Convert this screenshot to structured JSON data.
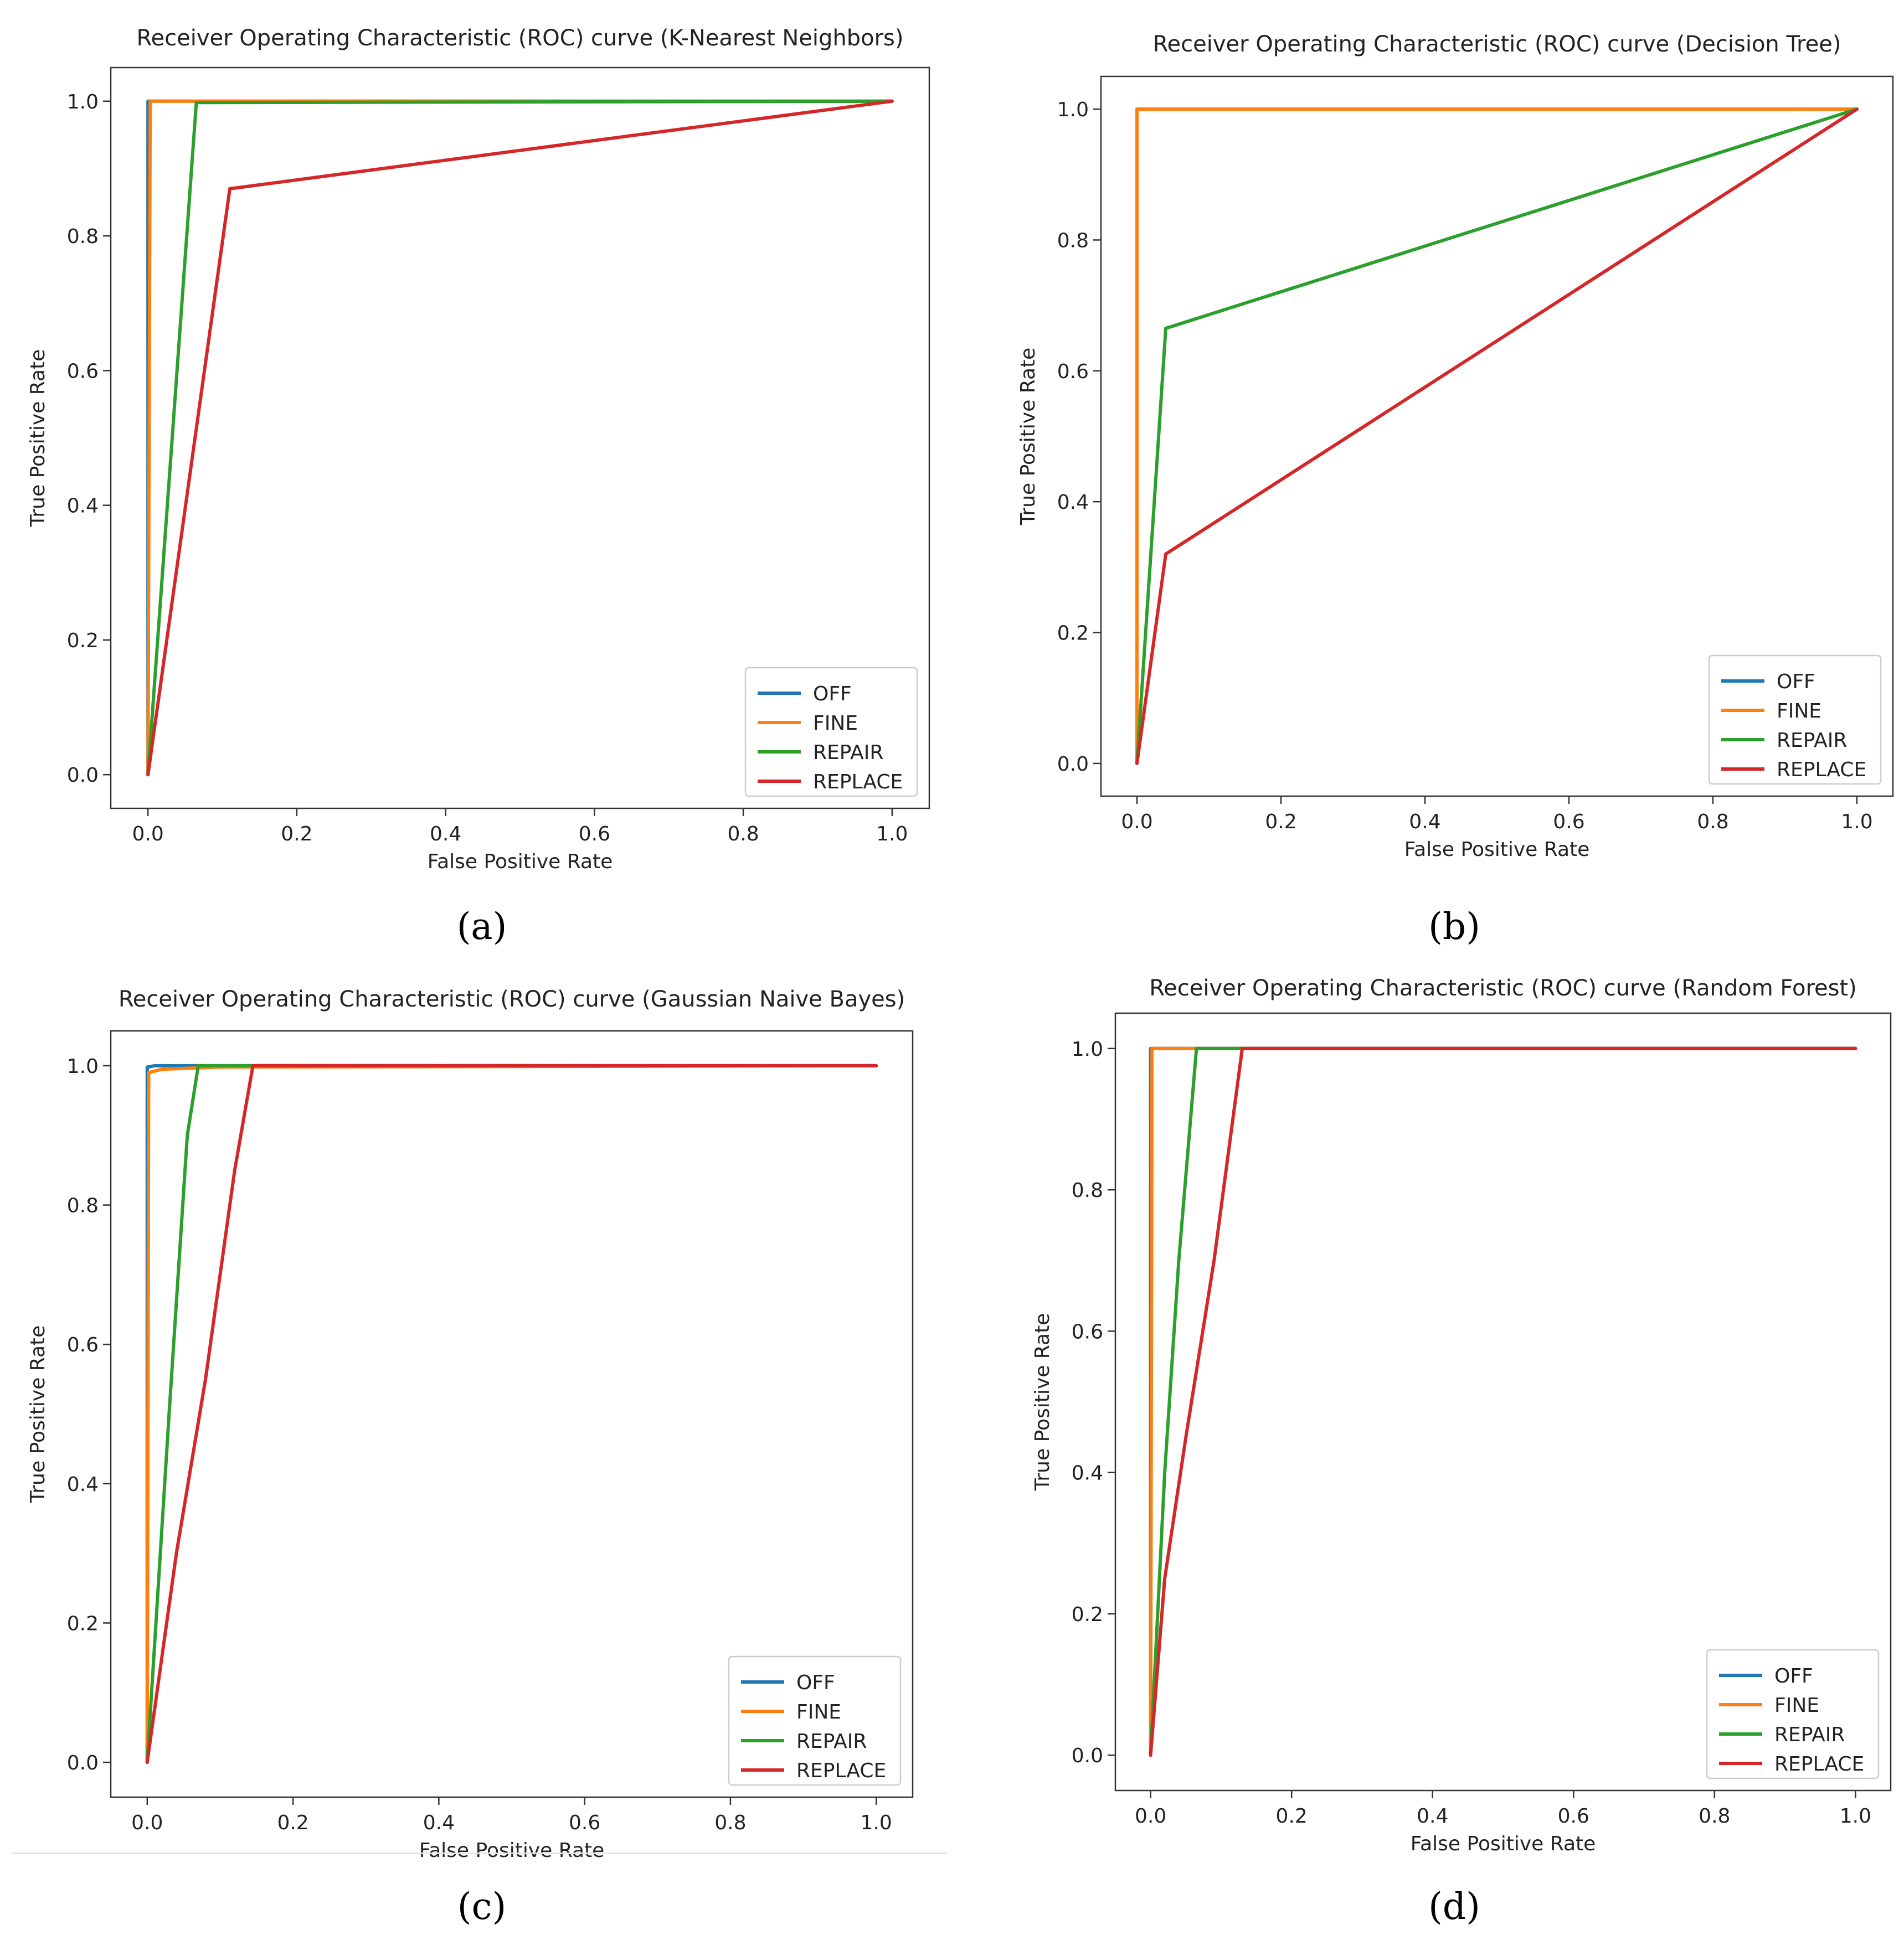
{
  "axis_labels": {
    "x": "False Positive Rate",
    "y": "True Positive Rate"
  },
  "legend_entries": [
    "OFF",
    "FINE",
    "REPAIR",
    "REPLACE"
  ],
  "series_colors": {
    "OFF": "#1f77b4",
    "FINE": "#ff7f0e",
    "REPAIR": "#2ca02c",
    "REPLACE": "#d62728"
  },
  "chart_data": [
    {
      "type": "line",
      "panel_label": "(a)",
      "title": "Receiver Operating Characteristic (ROC) curve (K-Nearest Neighbors)",
      "xlabel": "False Positive Rate",
      "ylabel": "True Positive Rate",
      "xlim": [
        -0.05,
        1.05
      ],
      "ylim": [
        -0.05,
        1.05
      ],
      "xticks": [
        "0.0",
        "0.2",
        "0.4",
        "0.6",
        "0.8",
        "1.0"
      ],
      "yticks": [
        "0.0",
        "0.2",
        "0.4",
        "0.6",
        "0.8",
        "1.0"
      ],
      "legend": "lower right",
      "series": [
        {
          "name": "OFF",
          "x": [
            0,
            0,
            1
          ],
          "y": [
            0,
            1,
            1
          ]
        },
        {
          "name": "FINE",
          "x": [
            0,
            0.003,
            1
          ],
          "y": [
            0,
            1,
            1
          ]
        },
        {
          "name": "REPAIR",
          "x": [
            0,
            0.065,
            1
          ],
          "y": [
            0,
            0.998,
            1
          ]
        },
        {
          "name": "REPLACE",
          "x": [
            0,
            0.11,
            1
          ],
          "y": [
            0,
            0.87,
            1
          ]
        }
      ]
    },
    {
      "type": "line",
      "panel_label": "(b)",
      "title": "Receiver Operating Characteristic (ROC) curve (Decision Tree)",
      "xlabel": "False Positive Rate",
      "ylabel": "True Positive Rate",
      "xlim": [
        -0.05,
        1.05
      ],
      "ylim": [
        -0.05,
        1.05
      ],
      "xticks": [
        "0.0",
        "0.2",
        "0.4",
        "0.6",
        "0.8",
        "1.0"
      ],
      "yticks": [
        "0.0",
        "0.2",
        "0.4",
        "0.6",
        "0.8",
        "1.0"
      ],
      "legend": "lower right",
      "series": [
        {
          "name": "OFF",
          "x": [
            0,
            0,
            1
          ],
          "y": [
            0,
            1,
            1
          ]
        },
        {
          "name": "FINE",
          "x": [
            0,
            0,
            1
          ],
          "y": [
            0,
            1,
            1
          ]
        },
        {
          "name": "REPAIR",
          "x": [
            0,
            0.04,
            1
          ],
          "y": [
            0,
            0.665,
            1
          ]
        },
        {
          "name": "REPLACE",
          "x": [
            0,
            0.04,
            1
          ],
          "y": [
            0,
            0.32,
            1
          ]
        }
      ]
    },
    {
      "type": "line",
      "panel_label": "(c)",
      "title": "Receiver Operating Characteristic (ROC) curve (Gaussian Naive Bayes)",
      "xlabel": "False Positive Rate",
      "ylabel": "True Positive Rate",
      "xlim": [
        -0.05,
        1.05
      ],
      "ylim": [
        -0.05,
        1.05
      ],
      "xticks": [
        "0.0",
        "0.2",
        "0.4",
        "0.6",
        "0.8",
        "1.0"
      ],
      "yticks": [
        "0.0",
        "0.2",
        "0.4",
        "0.6",
        "0.8",
        "1.0"
      ],
      "legend": "lower right",
      "series": [
        {
          "name": "OFF",
          "x": [
            0,
            0,
            0.01,
            1
          ],
          "y": [
            0,
            0.998,
            1,
            1
          ]
        },
        {
          "name": "FINE",
          "x": [
            0,
            0.002,
            0.02,
            0.1,
            1
          ],
          "y": [
            0,
            0.99,
            0.995,
            0.998,
            1
          ]
        },
        {
          "name": "REPAIR",
          "x": [
            0,
            0.03,
            0.055,
            0.07,
            1
          ],
          "y": [
            0,
            0.5,
            0.9,
            1,
            1
          ]
        },
        {
          "name": "REPLACE",
          "x": [
            0,
            0.04,
            0.08,
            0.12,
            0.145,
            1
          ],
          "y": [
            0,
            0.3,
            0.55,
            0.85,
            1,
            1
          ]
        }
      ]
    },
    {
      "type": "line",
      "panel_label": "(d)",
      "title": "Receiver Operating Characteristic (ROC) curve (Random Forest)",
      "xlabel": "False Positive Rate",
      "ylabel": "True Positive Rate",
      "xlim": [
        -0.05,
        1.05
      ],
      "ylim": [
        -0.05,
        1.05
      ],
      "xticks": [
        "0.0",
        "0.2",
        "0.4",
        "0.6",
        "0.8",
        "1.0"
      ],
      "yticks": [
        "0.0",
        "0.2",
        "0.4",
        "0.6",
        "0.8",
        "1.0"
      ],
      "legend": "lower right",
      "series": [
        {
          "name": "OFF",
          "x": [
            0,
            0,
            1
          ],
          "y": [
            0,
            1,
            1
          ]
        },
        {
          "name": "FINE",
          "x": [
            0,
            0.002,
            1
          ],
          "y": [
            0,
            1,
            1
          ]
        },
        {
          "name": "REPAIR",
          "x": [
            0,
            0.02,
            0.04,
            0.065,
            1
          ],
          "y": [
            0,
            0.4,
            0.7,
            1,
            1
          ]
        },
        {
          "name": "REPLACE",
          "x": [
            0,
            0.02,
            0.05,
            0.09,
            0.13,
            1
          ],
          "y": [
            0,
            0.25,
            0.45,
            0.7,
            1,
            1
          ]
        }
      ]
    }
  ]
}
